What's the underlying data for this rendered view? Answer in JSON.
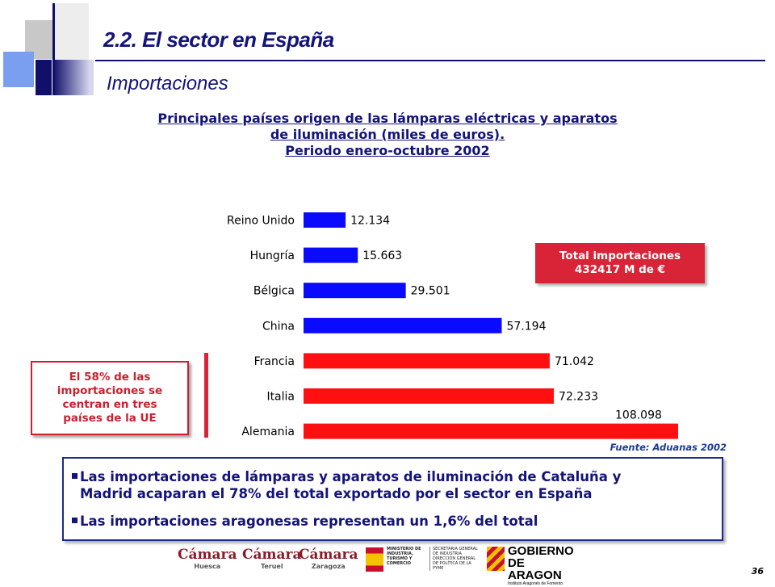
{
  "header": {
    "title": "2.2. El sector en España",
    "subtitle": "Importaciones"
  },
  "chart_heading": {
    "line1": "Principales países origen de las lámparas eléctricas y aparatos",
    "line2": "de iluminación (miles de euros).",
    "line3": "Periodo enero-octubre 2002"
  },
  "chart_data": {
    "type": "bar",
    "orientation": "horizontal",
    "categories": [
      "Reino Unido",
      "Hungría",
      "Bélgica",
      "China",
      "Francia",
      "Italia",
      "Alemania"
    ],
    "values": [
      12134,
      15663,
      29501,
      57194,
      71042,
      72233,
      108098
    ],
    "value_labels": [
      "12.134",
      "15.663",
      "29.501",
      "57.194",
      "71.042",
      "72.233",
      "108.098"
    ],
    "bar_colors": [
      "#0a0aff",
      "#0a0aff",
      "#0a0aff",
      "#0a0aff",
      "#ff1010",
      "#ff1010",
      "#ff1010"
    ],
    "xlim": [
      0,
      110000
    ]
  },
  "total_box": {
    "line1": "Total importaciones",
    "line2": "432417 M de €"
  },
  "ue_box": {
    "line1": "El 58% de las",
    "line2": "importaciones se",
    "line3": "centran en tres",
    "line4": "países de la UE"
  },
  "source": "Fuente: Aduanas 2002",
  "notes": [
    "Las importaciones de lámparas y aparatos de iluminación de Cataluña y",
    "Madrid acaparan el 78% del total exportado por el sector en España",
    "Las importaciones aragonesas representan un 1,6% del total"
  ],
  "logos": {
    "camara": "Cámara",
    "huesca": "Huesca",
    "teruel": "Teruel",
    "zaragoza": "Zaragoza",
    "ministerio": "MINISTERIO DE INDUSTRIA, TURISMO Y COMERCIO",
    "secretaria": "SECRETARIA GENERAL DE INDUSTRIA",
    "direccion": "DIRECCIÓN GENERAL DE POLÍTICA DE LA PYME",
    "gobierno_1": "GOBIERNO",
    "gobierno_2": "DE ARAGON",
    "instituto": "Instituto Aragonés de Fomento"
  },
  "page_number": "36"
}
